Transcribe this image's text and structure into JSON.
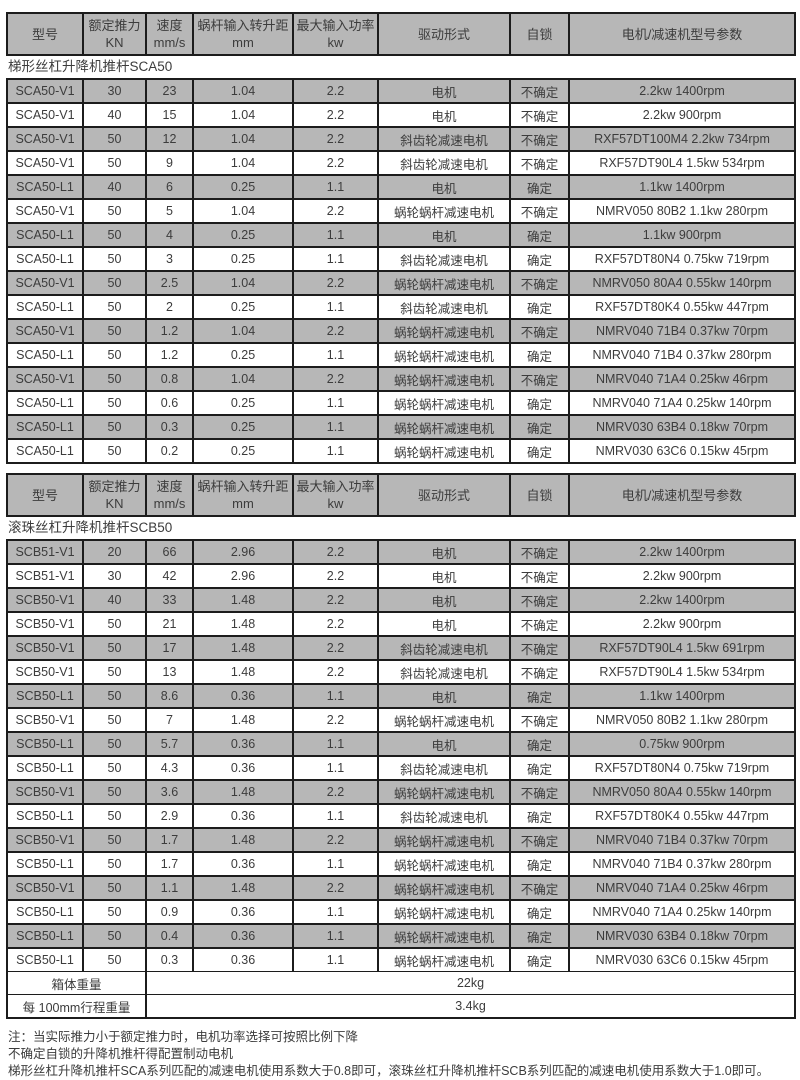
{
  "columns": [
    {
      "label": "型号",
      "sub": ""
    },
    {
      "label": "额定推力",
      "sub": "KN"
    },
    {
      "label": "速度",
      "sub": "mm/s"
    },
    {
      "label": "蜗杆输入转升距",
      "sub": "mm"
    },
    {
      "label": "最大输入功率",
      "sub": "kw"
    },
    {
      "label": "驱动形式",
      "sub": ""
    },
    {
      "label": "自锁",
      "sub": ""
    },
    {
      "label": "电机/减速机型号参数",
      "sub": ""
    }
  ],
  "sections": [
    {
      "title": "梯形丝杠升降机推杆SCA50",
      "rows": [
        [
          "SCA50-V1",
          "30",
          "23",
          "1.04",
          "2.2",
          "电机",
          "不确定",
          "2.2kw 1400rpm"
        ],
        [
          "SCA50-V1",
          "40",
          "15",
          "1.04",
          "2.2",
          "电机",
          "不确定",
          "2.2kw 900rpm"
        ],
        [
          "SCA50-V1",
          "50",
          "12",
          "1.04",
          "2.2",
          "斜齿轮减速电机",
          "不确定",
          "RXF57DT100M4 2.2kw 734rpm"
        ],
        [
          "SCA50-V1",
          "50",
          "9",
          "1.04",
          "2.2",
          "斜齿轮减速电机",
          "不确定",
          "RXF57DT90L4 1.5kw 534rpm"
        ],
        [
          "SCA50-L1",
          "40",
          "6",
          "0.25",
          "1.1",
          "电机",
          "确定",
          "1.1kw 1400rpm"
        ],
        [
          "SCA50-V1",
          "50",
          "5",
          "1.04",
          "2.2",
          "蜗轮蜗杆减速电机",
          "不确定",
          "NMRV050 80B2 1.1kw 280rpm"
        ],
        [
          "SCA50-L1",
          "50",
          "4",
          "0.25",
          "1.1",
          "电机",
          "确定",
          "1.1kw 900rpm"
        ],
        [
          "SCA50-L1",
          "50",
          "3",
          "0.25",
          "1.1",
          "斜齿轮减速电机",
          "确定",
          "RXF57DT80N4 0.75kw 719rpm"
        ],
        [
          "SCA50-V1",
          "50",
          "2.5",
          "1.04",
          "2.2",
          "蜗轮蜗杆减速电机",
          "不确定",
          "NMRV050 80A4 0.55kw 140rpm"
        ],
        [
          "SCA50-L1",
          "50",
          "2",
          "0.25",
          "1.1",
          "斜齿轮减速电机",
          "确定",
          "RXF57DT80K4 0.55kw 447rpm"
        ],
        [
          "SCA50-V1",
          "50",
          "1.2",
          "1.04",
          "2.2",
          "蜗轮蜗杆减速电机",
          "不确定",
          "NMRV040 71B4 0.37kw 70rpm"
        ],
        [
          "SCA50-L1",
          "50",
          "1.2",
          "0.25",
          "1.1",
          "蜗轮蜗杆减速电机",
          "确定",
          "NMRV040 71B4 0.37kw 280rpm"
        ],
        [
          "SCA50-V1",
          "50",
          "0.8",
          "1.04",
          "2.2",
          "蜗轮蜗杆减速电机",
          "不确定",
          "NMRV040 71A4 0.25kw 46rpm"
        ],
        [
          "SCA50-L1",
          "50",
          "0.6",
          "0.25",
          "1.1",
          "蜗轮蜗杆减速电机",
          "确定",
          "NMRV040 71A4 0.25kw 140rpm"
        ],
        [
          "SCA50-L1",
          "50",
          "0.3",
          "0.25",
          "1.1",
          "蜗轮蜗杆减速电机",
          "确定",
          "NMRV030 63B4 0.18kw 70rpm"
        ],
        [
          "SCA50-L1",
          "50",
          "0.2",
          "0.25",
          "1.1",
          "蜗轮蜗杆减速电机",
          "确定",
          "NMRV030 63C6 0.15kw 45rpm"
        ]
      ]
    },
    {
      "title": "滚珠丝杠升降机推杆SCB50",
      "rows": [
        [
          "SCB51-V1",
          "20",
          "66",
          "2.96",
          "2.2",
          "电机",
          "不确定",
          "2.2kw 1400rpm"
        ],
        [
          "SCB51-V1",
          "30",
          "42",
          "2.96",
          "2.2",
          "电机",
          "不确定",
          "2.2kw 900rpm"
        ],
        [
          "SCB50-V1",
          "40",
          "33",
          "1.48",
          "2.2",
          "电机",
          "不确定",
          "2.2kw 1400rpm"
        ],
        [
          "SCB50-V1",
          "50",
          "21",
          "1.48",
          "2.2",
          "电机",
          "不确定",
          "2.2kw 900rpm"
        ],
        [
          "SCB50-V1",
          "50",
          "17",
          "1.48",
          "2.2",
          "斜齿轮减速电机",
          "不确定",
          "RXF57DT90L4 1.5kw 691rpm"
        ],
        [
          "SCB50-V1",
          "50",
          "13",
          "1.48",
          "2.2",
          "斜齿轮减速电机",
          "不确定",
          "RXF57DT90L4 1.5kw 534rpm"
        ],
        [
          "SCB50-L1",
          "50",
          "8.6",
          "0.36",
          "1.1",
          "电机",
          "确定",
          "1.1kw 1400rpm"
        ],
        [
          "SCB50-V1",
          "50",
          "7",
          "1.48",
          "2.2",
          "蜗轮蜗杆减速电机",
          "不确定",
          "NMRV050 80B2 1.1kw 280rpm"
        ],
        [
          "SCB50-L1",
          "50",
          "5.7",
          "0.36",
          "1.1",
          "电机",
          "确定",
          "0.75kw 900rpm"
        ],
        [
          "SCB50-L1",
          "50",
          "4.3",
          "0.36",
          "1.1",
          "斜齿轮减速电机",
          "确定",
          "RXF57DT80N4 0.75kw 719rpm"
        ],
        [
          "SCB50-V1",
          "50",
          "3.6",
          "1.48",
          "2.2",
          "蜗轮蜗杆减速电机",
          "不确定",
          "NMRV050 80A4 0.55kw 140rpm"
        ],
        [
          "SCB50-L1",
          "50",
          "2.9",
          "0.36",
          "1.1",
          "斜齿轮减速电机",
          "确定",
          "RXF57DT80K4 0.55kw 447rpm"
        ],
        [
          "SCB50-V1",
          "50",
          "1.7",
          "1.48",
          "2.2",
          "蜗轮蜗杆减速电机",
          "不确定",
          "NMRV040 71B4 0.37kw 70rpm"
        ],
        [
          "SCB50-L1",
          "50",
          "1.7",
          "0.36",
          "1.1",
          "蜗轮蜗杆减速电机",
          "确定",
          "NMRV040 71B4 0.37kw 280rpm"
        ],
        [
          "SCB50-V1",
          "50",
          "1.1",
          "1.48",
          "2.2",
          "蜗轮蜗杆减速电机",
          "不确定",
          "NMRV040 71A4 0.25kw 46rpm"
        ],
        [
          "SCB50-L1",
          "50",
          "0.9",
          "0.36",
          "1.1",
          "蜗轮蜗杆减速电机",
          "确定",
          "NMRV040 71A4 0.25kw 140rpm"
        ],
        [
          "SCB50-L1",
          "50",
          "0.4",
          "0.36",
          "1.1",
          "蜗轮蜗杆减速电机",
          "确定",
          "NMRV030 63B4 0.18kw 70rpm"
        ],
        [
          "SCB50-L1",
          "50",
          "0.3",
          "0.36",
          "1.1",
          "蜗轮蜗杆减速电机",
          "确定",
          "NMRV030 63C6 0.15kw 45rpm"
        ]
      ],
      "footer_rows": [
        {
          "label": "箱体重量",
          "value": "22kg"
        },
        {
          "label": "每 100mm行程重量",
          "value": "3.4kg"
        }
      ]
    }
  ],
  "notes": [
    "注：当实际推力小于额定推力时，电机功率选择可按照比例下降",
    "不确定自锁的升降机推杆得配置制动电机",
    "梯形丝杠升降机推杆SCA系列匹配的减速电机使用系数大于0.8即可，滚珠丝杠升降机推杆SCB系列匹配的减速电机使用系数大于1.0即可。"
  ],
  "colors": {
    "row_shade": "#b7b7b7",
    "border": "#1c1c1c",
    "text": "#3c3c3c"
  }
}
